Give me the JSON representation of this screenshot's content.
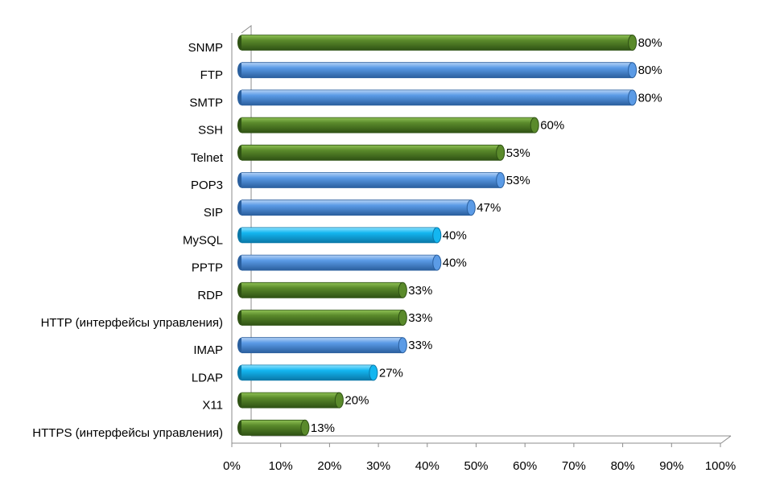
{
  "chart_data": {
    "type": "bar",
    "orientation": "horizontal",
    "title": "",
    "xlabel": "",
    "ylabel": "",
    "xlim": [
      0,
      100
    ],
    "x_unit": "%",
    "grid": false,
    "legend": "none",
    "x_ticks": [
      "0%",
      "10%",
      "20%",
      "30%",
      "40%",
      "50%",
      "60%",
      "70%",
      "80%",
      "90%",
      "100%"
    ],
    "bars": [
      {
        "label": "SNMP",
        "value": 80,
        "display": "80%",
        "color": "green"
      },
      {
        "label": "FTP",
        "value": 80,
        "display": "80%",
        "color": "blue"
      },
      {
        "label": "SMTP",
        "value": 80,
        "display": "80%",
        "color": "blue"
      },
      {
        "label": "SSH",
        "value": 60,
        "display": "60%",
        "color": "green"
      },
      {
        "label": "Telnet",
        "value": 53,
        "display": "53%",
        "color": "green"
      },
      {
        "label": "POP3",
        "value": 53,
        "display": "53%",
        "color": "blue"
      },
      {
        "label": "SIP",
        "value": 47,
        "display": "47%",
        "color": "blue"
      },
      {
        "label": "MySQL",
        "value": 40,
        "display": "40%",
        "color": "cyan"
      },
      {
        "label": "PPTP",
        "value": 40,
        "display": "40%",
        "color": "blue"
      },
      {
        "label": "RDP",
        "value": 33,
        "display": "33%",
        "color": "green"
      },
      {
        "label": "HTTP (интерфейсы управления)",
        "value": 33,
        "display": "33%",
        "color": "green"
      },
      {
        "label": "IMAP",
        "value": 33,
        "display": "33%",
        "color": "blue"
      },
      {
        "label": "LDAP",
        "value": 27,
        "display": "27%",
        "color": "cyan"
      },
      {
        "label": "X11",
        "value": 20,
        "display": "20%",
        "color": "green"
      },
      {
        "label": "HTTPS (интерфейсы управления)",
        "value": 13,
        "display": "13%",
        "color": "green"
      }
    ],
    "colors": {
      "green": {
        "light": "#8fc255",
        "mid": "#5a8a2b",
        "dark": "#2f5214"
      },
      "blue": {
        "light": "#b6d3f6",
        "mid": "#5b9be6",
        "dark": "#2a5f9e"
      },
      "cyan": {
        "light": "#8fe3ff",
        "mid": "#13b6f0",
        "dark": "#0a78a8"
      }
    }
  }
}
